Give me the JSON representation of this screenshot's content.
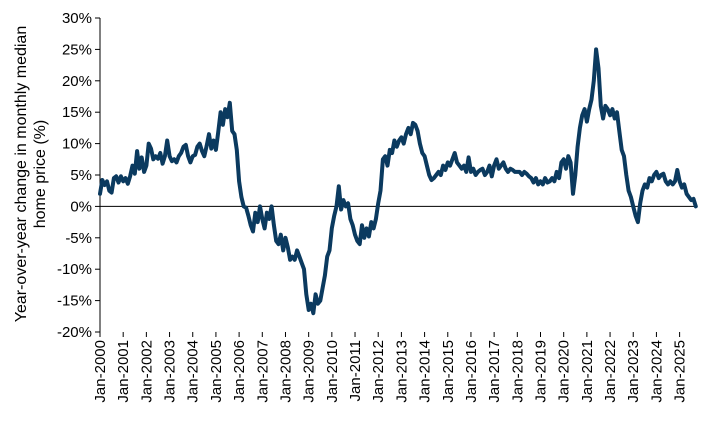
{
  "chart_data": {
    "type": "line",
    "title": "",
    "xlabel": "",
    "ylabel_lines": [
      "Year-over-year change in monthly median",
      "home price (%)"
    ],
    "ylim": [
      -20,
      30
    ],
    "xlim": [
      2000.0,
      2025.75
    ],
    "y_ticks": [
      {
        "value": 30,
        "label": "30%"
      },
      {
        "value": 25,
        "label": "25%"
      },
      {
        "value": 20,
        "label": "20%"
      },
      {
        "value": 15,
        "label": "15%"
      },
      {
        "value": 10,
        "label": "10%"
      },
      {
        "value": 5,
        "label": "5%"
      },
      {
        "value": 0,
        "label": "0%"
      },
      {
        "value": -5,
        "label": "-5%"
      },
      {
        "value": -10,
        "label": "-10%"
      },
      {
        "value": -15,
        "label": "-15%"
      },
      {
        "value": -20,
        "label": "-20%"
      }
    ],
    "x_ticks": [
      {
        "value": 2000,
        "label": "Jan-2000"
      },
      {
        "value": 2001,
        "label": "Jan-2001"
      },
      {
        "value": 2002,
        "label": "Jan-2002"
      },
      {
        "value": 2003,
        "label": "Jan-2003"
      },
      {
        "value": 2004,
        "label": "Jan-2004"
      },
      {
        "value": 2005,
        "label": "Jan-2005"
      },
      {
        "value": 2006,
        "label": "Jan-2006"
      },
      {
        "value": 2007,
        "label": "Jan-2007"
      },
      {
        "value": 2008,
        "label": "Jan-2008"
      },
      {
        "value": 2009,
        "label": "Jan-2009"
      },
      {
        "value": 2010,
        "label": "Jan-2010"
      },
      {
        "value": 2011,
        "label": "Jan-2011"
      },
      {
        "value": 2012,
        "label": "Jan-2012"
      },
      {
        "value": 2013,
        "label": "Jan-2013"
      },
      {
        "value": 2014,
        "label": "Jan-2014"
      },
      {
        "value": 2015,
        "label": "Jan-2015"
      },
      {
        "value": 2016,
        "label": "Jan-2016"
      },
      {
        "value": 2017,
        "label": "Jan-2017"
      },
      {
        "value": 2018,
        "label": "Jan-2018"
      },
      {
        "value": 2019,
        "label": "Jan-2019"
      },
      {
        "value": 2020,
        "label": "Jan-2020"
      },
      {
        "value": 2021,
        "label": "Jan-2021"
      },
      {
        "value": 2022,
        "label": "Jan-2022"
      },
      {
        "value": 2023,
        "label": "Jan-2023"
      },
      {
        "value": 2024,
        "label": "Jan-2024"
      },
      {
        "value": 2025,
        "label": "Jan-2025"
      }
    ],
    "grid": false,
    "series": [
      {
        "color": "#0b3a5f",
        "points": [
          [
            2000.0,
            2.0
          ],
          [
            2000.1,
            4.2
          ],
          [
            2000.2,
            3.4
          ],
          [
            2000.3,
            4.0
          ],
          [
            2000.4,
            2.5
          ],
          [
            2000.5,
            2.2
          ],
          [
            2000.6,
            4.5
          ],
          [
            2000.7,
            4.8
          ],
          [
            2000.8,
            3.8
          ],
          [
            2000.9,
            4.8
          ],
          [
            2001.0,
            4.0
          ],
          [
            2001.1,
            4.5
          ],
          [
            2001.2,
            3.6
          ],
          [
            2001.3,
            4.8
          ],
          [
            2001.4,
            6.5
          ],
          [
            2001.5,
            5.2
          ],
          [
            2001.6,
            8.8
          ],
          [
            2001.7,
            6.0
          ],
          [
            2001.8,
            7.8
          ],
          [
            2001.9,
            5.5
          ],
          [
            2002.0,
            6.5
          ],
          [
            2002.1,
            10.0
          ],
          [
            2002.2,
            9.2
          ],
          [
            2002.3,
            7.5
          ],
          [
            2002.4,
            8.0
          ],
          [
            2002.5,
            7.6
          ],
          [
            2002.6,
            8.5
          ],
          [
            2002.7,
            6.8
          ],
          [
            2002.8,
            8.0
          ],
          [
            2002.9,
            10.5
          ],
          [
            2003.0,
            8.0
          ],
          [
            2003.1,
            7.2
          ],
          [
            2003.2,
            7.5
          ],
          [
            2003.3,
            7.0
          ],
          [
            2003.4,
            8.0
          ],
          [
            2003.5,
            8.5
          ],
          [
            2003.6,
            9.5
          ],
          [
            2003.7,
            9.8
          ],
          [
            2003.8,
            8.0
          ],
          [
            2003.9,
            7.0
          ],
          [
            2004.0,
            8.0
          ],
          [
            2004.1,
            8.2
          ],
          [
            2004.2,
            9.5
          ],
          [
            2004.3,
            10.0
          ],
          [
            2004.4,
            8.8
          ],
          [
            2004.5,
            8.0
          ],
          [
            2004.6,
            9.6
          ],
          [
            2004.7,
            11.5
          ],
          [
            2004.8,
            9.2
          ],
          [
            2004.9,
            10.5
          ],
          [
            2005.0,
            9.0
          ],
          [
            2005.1,
            11.8
          ],
          [
            2005.2,
            15.0
          ],
          [
            2005.3,
            13.0
          ],
          [
            2005.4,
            15.5
          ],
          [
            2005.5,
            14.2
          ],
          [
            2005.6,
            16.5
          ],
          [
            2005.7,
            12.0
          ],
          [
            2005.8,
            11.5
          ],
          [
            2005.9,
            9.0
          ],
          [
            2006.0,
            4.0
          ],
          [
            2006.1,
            1.5
          ],
          [
            2006.2,
            0.0
          ],
          [
            2006.3,
            -0.2
          ],
          [
            2006.4,
            -1.5
          ],
          [
            2006.5,
            -3.0
          ],
          [
            2006.6,
            -4.0
          ],
          [
            2006.7,
            -1.0
          ],
          [
            2006.8,
            -2.5
          ],
          [
            2006.9,
            0.0
          ],
          [
            2007.0,
            -2.0
          ],
          [
            2007.1,
            -3.5
          ],
          [
            2007.2,
            -1.0
          ],
          [
            2007.3,
            -2.0
          ],
          [
            2007.4,
            0.0
          ],
          [
            2007.5,
            -3.0
          ],
          [
            2007.6,
            -5.5
          ],
          [
            2007.7,
            -6.0
          ],
          [
            2007.8,
            -4.5
          ],
          [
            2007.9,
            -7.0
          ],
          [
            2008.0,
            -5.0
          ],
          [
            2008.1,
            -6.5
          ],
          [
            2008.2,
            -8.5
          ],
          [
            2008.3,
            -8.0
          ],
          [
            2008.4,
            -8.5
          ],
          [
            2008.5,
            -7.0
          ],
          [
            2008.6,
            -8.0
          ],
          [
            2008.7,
            -9.0
          ],
          [
            2008.8,
            -10.0
          ],
          [
            2008.9,
            -14.0
          ],
          [
            2009.0,
            -16.5
          ],
          [
            2009.1,
            -15.5
          ],
          [
            2009.2,
            -17.0
          ],
          [
            2009.3,
            -14.0
          ],
          [
            2009.4,
            -15.5
          ],
          [
            2009.5,
            -15.0
          ],
          [
            2009.6,
            -13.0
          ],
          [
            2009.7,
            -11.0
          ],
          [
            2009.8,
            -8.0
          ],
          [
            2009.9,
            -7.0
          ],
          [
            2010.0,
            -3.5
          ],
          [
            2010.1,
            -1.5
          ],
          [
            2010.2,
            0.0
          ],
          [
            2010.3,
            3.2
          ],
          [
            2010.4,
            -0.5
          ],
          [
            2010.5,
            1.0
          ],
          [
            2010.6,
            0.0
          ],
          [
            2010.7,
            0.5
          ],
          [
            2010.8,
            -2.0
          ],
          [
            2010.9,
            -3.0
          ],
          [
            2011.0,
            -4.5
          ],
          [
            2011.1,
            -5.5
          ],
          [
            2011.2,
            -6.0
          ],
          [
            2011.3,
            -3.0
          ],
          [
            2011.4,
            -5.0
          ],
          [
            2011.5,
            -3.5
          ],
          [
            2011.6,
            -4.8
          ],
          [
            2011.7,
            -2.5
          ],
          [
            2011.8,
            -3.5
          ],
          [
            2011.9,
            -2.0
          ],
          [
            2012.0,
            0.5
          ],
          [
            2012.1,
            2.5
          ],
          [
            2012.2,
            7.5
          ],
          [
            2012.3,
            8.0
          ],
          [
            2012.4,
            6.5
          ],
          [
            2012.5,
            9.0
          ],
          [
            2012.6,
            8.5
          ],
          [
            2012.7,
            10.5
          ],
          [
            2012.8,
            9.5
          ],
          [
            2012.9,
            10.5
          ],
          [
            2013.0,
            11.0
          ],
          [
            2013.1,
            10.0
          ],
          [
            2013.2,
            11.5
          ],
          [
            2013.3,
            12.5
          ],
          [
            2013.4,
            11.5
          ],
          [
            2013.5,
            13.3
          ],
          [
            2013.6,
            13.0
          ],
          [
            2013.7,
            12.0
          ],
          [
            2013.8,
            10.0
          ],
          [
            2013.9,
            8.5
          ],
          [
            2014.0,
            8.0
          ],
          [
            2014.1,
            6.5
          ],
          [
            2014.2,
            5.0
          ],
          [
            2014.3,
            4.2
          ],
          [
            2014.4,
            4.5
          ],
          [
            2014.5,
            5.0
          ],
          [
            2014.6,
            5.5
          ],
          [
            2014.7,
            5.0
          ],
          [
            2014.8,
            6.5
          ],
          [
            2014.9,
            5.8
          ],
          [
            2015.0,
            7.0
          ],
          [
            2015.1,
            6.5
          ],
          [
            2015.2,
            7.5
          ],
          [
            2015.3,
            8.5
          ],
          [
            2015.4,
            7.0
          ],
          [
            2015.5,
            6.5
          ],
          [
            2015.6,
            6.0
          ],
          [
            2015.7,
            6.5
          ],
          [
            2015.8,
            5.5
          ],
          [
            2015.9,
            7.8
          ],
          [
            2016.0,
            5.5
          ],
          [
            2016.1,
            6.0
          ],
          [
            2016.2,
            5.0
          ],
          [
            2016.3,
            5.5
          ],
          [
            2016.4,
            5.8
          ],
          [
            2016.5,
            6.0
          ],
          [
            2016.6,
            5.0
          ],
          [
            2016.7,
            5.5
          ],
          [
            2016.8,
            6.5
          ],
          [
            2016.9,
            4.8
          ],
          [
            2017.0,
            6.5
          ],
          [
            2017.1,
            7.5
          ],
          [
            2017.2,
            6.0
          ],
          [
            2017.3,
            6.5
          ],
          [
            2017.4,
            7.0
          ],
          [
            2017.5,
            6.0
          ],
          [
            2017.6,
            5.5
          ],
          [
            2017.7,
            6.0
          ],
          [
            2017.8,
            5.8
          ],
          [
            2017.9,
            5.5
          ],
          [
            2018.0,
            5.5
          ],
          [
            2018.1,
            5.5
          ],
          [
            2018.2,
            5.0
          ],
          [
            2018.3,
            5.5
          ],
          [
            2018.4,
            5.2
          ],
          [
            2018.5,
            4.8
          ],
          [
            2018.6,
            4.5
          ],
          [
            2018.7,
            3.8
          ],
          [
            2018.8,
            4.5
          ],
          [
            2018.9,
            3.5
          ],
          [
            2019.0,
            4.0
          ],
          [
            2019.1,
            3.5
          ],
          [
            2019.2,
            4.5
          ],
          [
            2019.3,
            3.8
          ],
          [
            2019.4,
            4.0
          ],
          [
            2019.5,
            4.5
          ],
          [
            2019.6,
            4.0
          ],
          [
            2019.7,
            5.5
          ],
          [
            2019.8,
            4.5
          ],
          [
            2019.9,
            7.0
          ],
          [
            2020.0,
            7.5
          ],
          [
            2020.1,
            6.0
          ],
          [
            2020.2,
            8.0
          ],
          [
            2020.3,
            7.0
          ],
          [
            2020.4,
            2.0
          ],
          [
            2020.5,
            5.0
          ],
          [
            2020.6,
            9.5
          ],
          [
            2020.7,
            12.5
          ],
          [
            2020.8,
            14.5
          ],
          [
            2020.9,
            15.5
          ],
          [
            2021.0,
            13.5
          ],
          [
            2021.1,
            15.5
          ],
          [
            2021.2,
            17.0
          ],
          [
            2021.3,
            20.0
          ],
          [
            2021.4,
            25.0
          ],
          [
            2021.5,
            22.0
          ],
          [
            2021.6,
            16.0
          ],
          [
            2021.7,
            14.0
          ],
          [
            2021.8,
            16.0
          ],
          [
            2021.9,
            15.5
          ],
          [
            2022.0,
            14.5
          ],
          [
            2022.1,
            15.5
          ],
          [
            2022.2,
            14.0
          ],
          [
            2022.3,
            15.0
          ],
          [
            2022.4,
            12.0
          ],
          [
            2022.5,
            9.0
          ],
          [
            2022.6,
            8.0
          ],
          [
            2022.7,
            5.0
          ],
          [
            2022.8,
            2.5
          ],
          [
            2022.9,
            1.5
          ],
          [
            2023.0,
            0.0
          ],
          [
            2023.1,
            -1.5
          ],
          [
            2023.2,
            -2.5
          ],
          [
            2023.3,
            0.5
          ],
          [
            2023.4,
            2.5
          ],
          [
            2023.5,
            3.5
          ],
          [
            2023.6,
            3.0
          ],
          [
            2023.7,
            4.5
          ],
          [
            2023.8,
            4.0
          ],
          [
            2023.9,
            5.0
          ],
          [
            2024.0,
            5.5
          ],
          [
            2024.1,
            4.5
          ],
          [
            2024.2,
            5.0
          ],
          [
            2024.3,
            5.2
          ],
          [
            2024.4,
            4.0
          ],
          [
            2024.5,
            3.5
          ],
          [
            2024.6,
            4.0
          ],
          [
            2024.7,
            3.5
          ],
          [
            2024.8,
            4.0
          ],
          [
            2024.9,
            5.8
          ],
          [
            2025.0,
            4.0
          ],
          [
            2025.1,
            3.0
          ],
          [
            2025.2,
            3.5
          ],
          [
            2025.3,
            2.0
          ],
          [
            2025.4,
            1.5
          ],
          [
            2025.5,
            1.0
          ],
          [
            2025.6,
            1.2
          ],
          [
            2025.7,
            0.0
          ]
        ]
      }
    ]
  }
}
